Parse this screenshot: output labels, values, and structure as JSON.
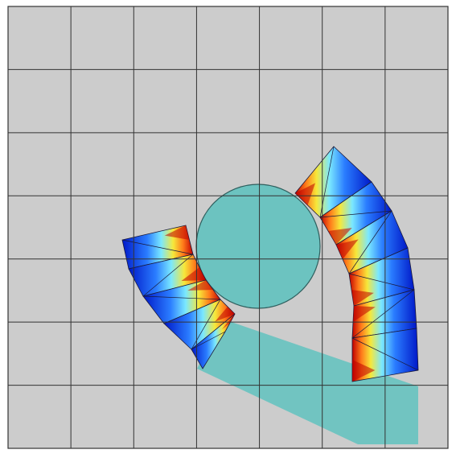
{
  "colors": {
    "page_background": "#ffffff",
    "domain_fill": "#cccccc",
    "grid_line": "#333333",
    "body_fill": "#6cc3c0",
    "body_stroke": "#2f5f5e",
    "element_edge": "#1a1a3a",
    "colormap_low": "#0018c8",
    "colormap_mid1": "#2a7cff",
    "colormap_mid2": "#7ae8ff",
    "colormap_mid3": "#f6e83a",
    "colormap_mid4": "#ff7a1a",
    "colormap_high": "#c00000"
  },
  "grid": {
    "rows": 7,
    "cols": 7
  },
  "icons": {
    "figure": "field-plot-diagram",
    "circle": "rigid-circle-body",
    "beam": "rigid-bar-body",
    "left_chain": "mesh-strip-left",
    "right_chain": "mesh-strip-right"
  }
}
